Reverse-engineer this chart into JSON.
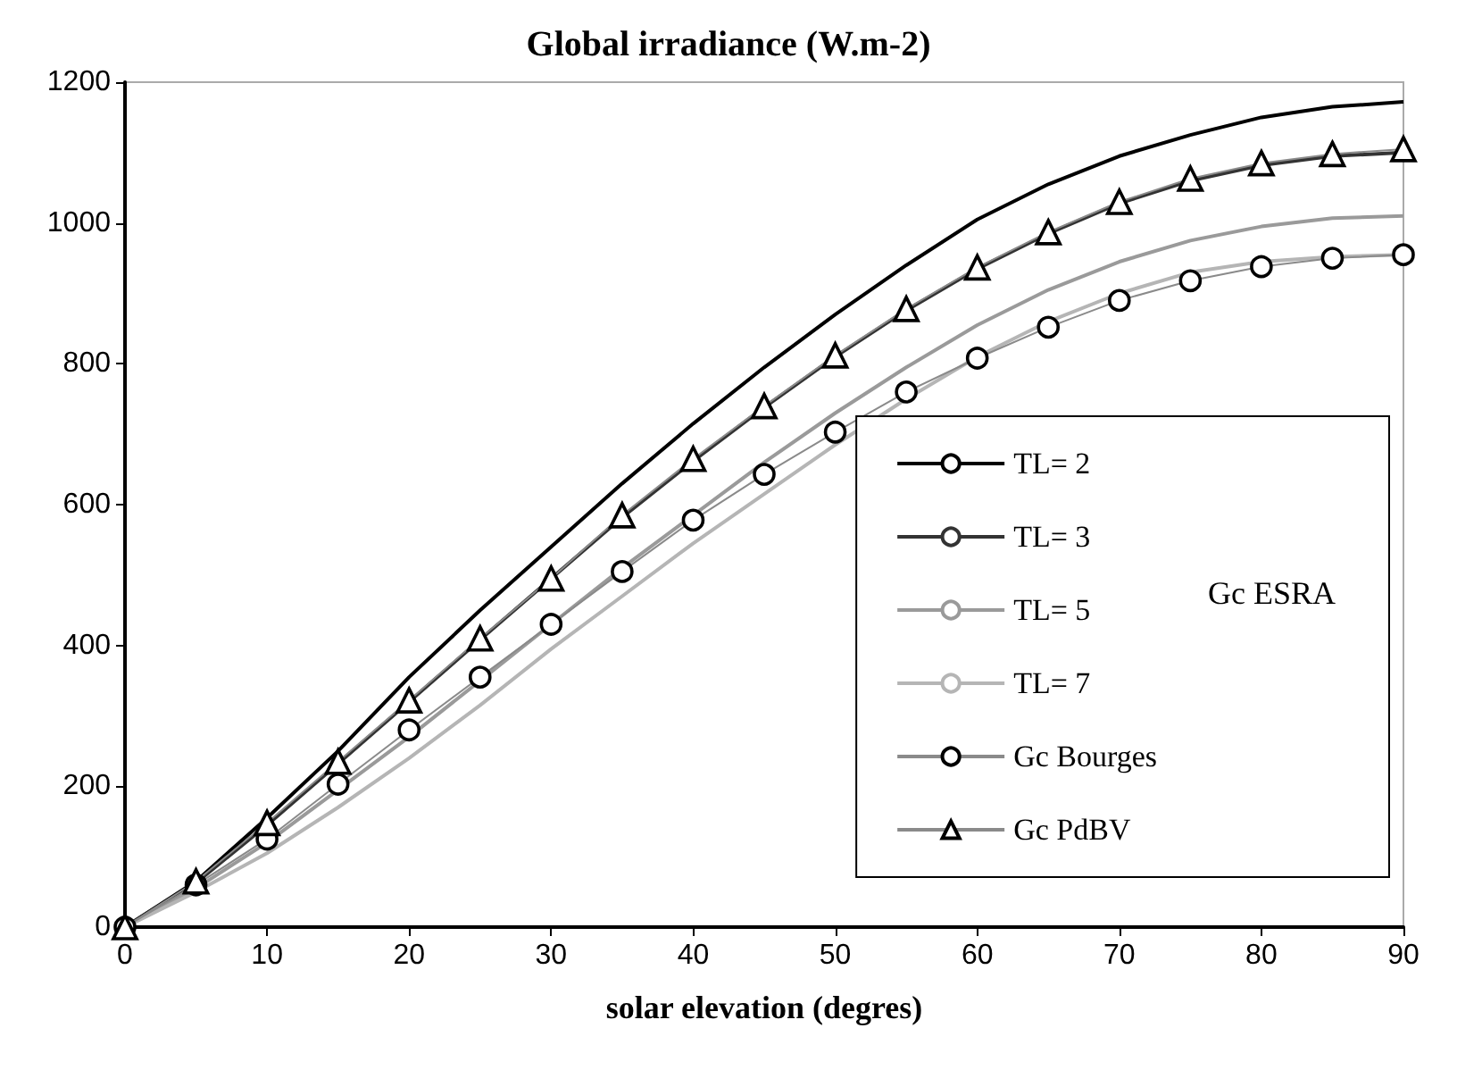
{
  "chart_data": {
    "type": "line",
    "title": "Global irradiance (W.m-2)",
    "xlabel": "solar elevation (degres)",
    "x": [
      0,
      5,
      10,
      15,
      20,
      25,
      30,
      35,
      40,
      45,
      50,
      55,
      60,
      65,
      70,
      75,
      80,
      85,
      90
    ],
    "series": [
      {
        "name": "TL= 2",
        "color": "#000000",
        "marker": "none",
        "values": [
          0,
          65,
          155,
          250,
          355,
          450,
          540,
          630,
          715,
          795,
          870,
          940,
          1005,
          1055,
          1095,
          1125,
          1150,
          1165,
          1172
        ]
      },
      {
        "name": "TL= 3",
        "color": "#333333",
        "marker": "none",
        "values": [
          0,
          63,
          145,
          232,
          320,
          408,
          495,
          582,
          662,
          738,
          810,
          876,
          935,
          985,
          1028,
          1060,
          1082,
          1095,
          1100
        ]
      },
      {
        "name": "TL= 5",
        "color": "#9a9a9a",
        "marker": "none",
        "values": [
          0,
          55,
          120,
          195,
          270,
          350,
          430,
          510,
          585,
          660,
          730,
          795,
          855,
          905,
          945,
          975,
          995,
          1007,
          1010
        ]
      },
      {
        "name": "TL= 7",
        "color": "#b5b5b5",
        "marker": "none",
        "values": [
          0,
          50,
          105,
          170,
          240,
          315,
          395,
          470,
          545,
          615,
          685,
          750,
          810,
          860,
          900,
          930,
          945,
          952,
          955
        ]
      },
      {
        "name": "Gc Bourges",
        "color": "#000000",
        "marker": "circle",
        "values": [
          0,
          60,
          125,
          203,
          280,
          355,
          430,
          505,
          578,
          643,
          703,
          760,
          808,
          852,
          890,
          918,
          938,
          950,
          955
        ]
      },
      {
        "name": "Gc PdBV",
        "color": "#000000",
        "marker": "triangle",
        "values": [
          0,
          65,
          148,
          235,
          322,
          410,
          495,
          585,
          665,
          740,
          812,
          878,
          937,
          987,
          1030,
          1063,
          1085,
          1098,
          1105
        ]
      }
    ],
    "xlim": [
      0,
      90
    ],
    "xticks": [
      0,
      10,
      20,
      30,
      40,
      50,
      60,
      70,
      80,
      90
    ],
    "ylim": [
      0,
      1200
    ],
    "yticks": [
      0,
      200,
      400,
      600,
      800,
      {
        "value": 1000,
        "label": "1000"
      },
      {
        "value": 1200,
        "label": "1200"
      }
    ],
    "grid": false,
    "legend": "bottom right",
    "annotations": [
      "Gc ESRA"
    ]
  }
}
